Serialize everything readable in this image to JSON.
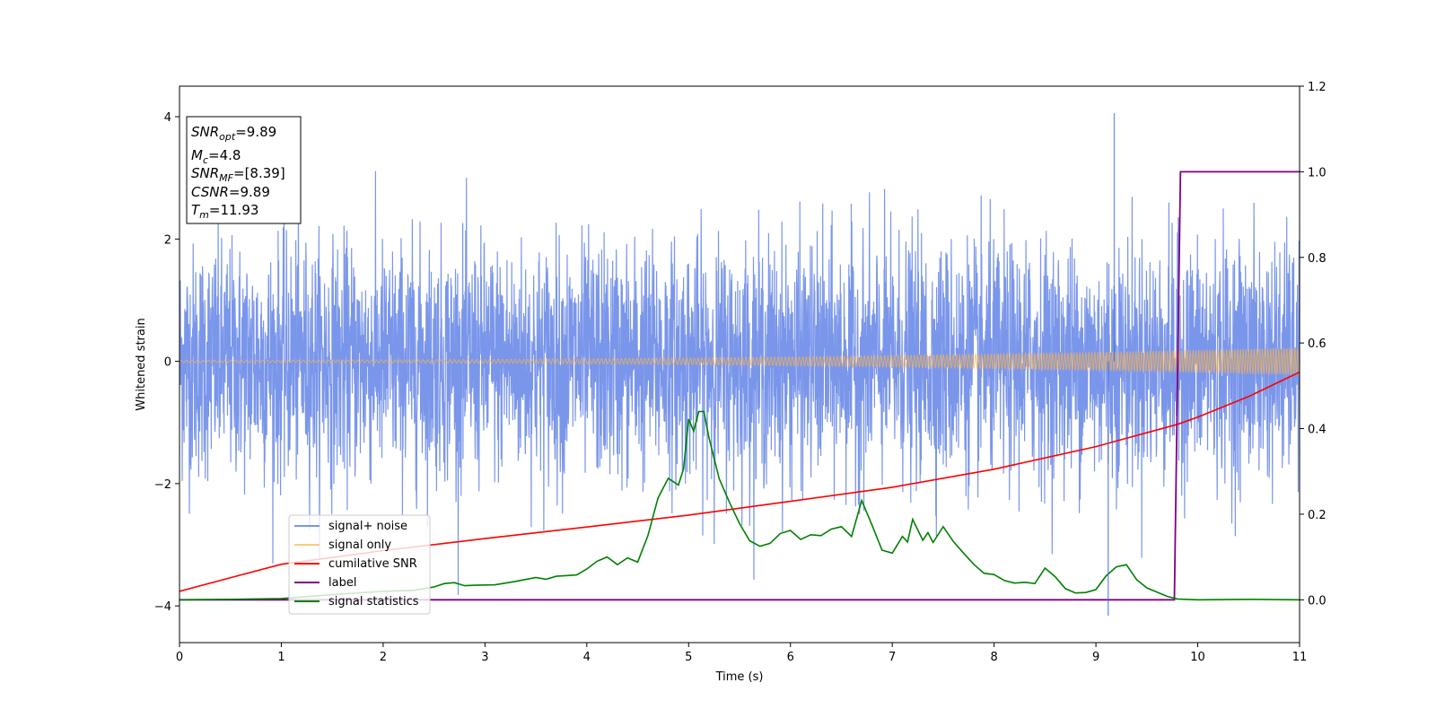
{
  "chart_data": {
    "type": "line",
    "xlabel": "Time (s)",
    "ylabel": "Whitened strain",
    "xlim": [
      0,
      11
    ],
    "ylim": [
      -4.6,
      4.5
    ],
    "y2lim": [
      -0.1,
      1.2
    ],
    "x_ticks": [
      "0",
      "1",
      "2",
      "3",
      "4",
      "5",
      "6",
      "7",
      "8",
      "9",
      "10",
      "11"
    ],
    "y_ticks": [
      "−4",
      "−2",
      "0",
      "2",
      "4"
    ],
    "y2_ticks": [
      "0.0",
      "0.2",
      "0.4",
      "0.6",
      "0.8",
      "1.0",
      "1.2"
    ],
    "grid": false,
    "legend_position": "lower-left",
    "legend": [
      "signal+ noise",
      "signal only",
      "cumilative SNR",
      "label",
      "signal statistics"
    ],
    "annotation": {
      "snr_opt": "=9.89",
      "mc": "=4.8",
      "snr_mf": "=[8.39]",
      "csnr": "=9.89",
      "tm": "=11.93"
    },
    "series": [
      {
        "name": "signal+ noise",
        "axis": "left",
        "color": "#4169e1",
        "description": "whitened noise, roughly ±2 with peaks near ±4",
        "peak_max": 4.06,
        "peak_min": -4.16
      },
      {
        "name": "signal only",
        "axis": "left",
        "color": "#ffb347",
        "amplitude_start": 0.02,
        "amplitude_end": 0.22
      },
      {
        "name": "cumilative SNR",
        "axis": "right",
        "color": "#ff0000",
        "x": [
          0,
          1,
          2,
          3,
          4,
          5,
          6,
          7,
          8,
          9,
          9.8,
          10,
          10.5,
          11
        ],
        "values": [
          0.02,
          0.083,
          0.115,
          0.143,
          0.17,
          0.198,
          0.23,
          0.263,
          0.305,
          0.358,
          0.41,
          0.427,
          0.475,
          0.532
        ]
      },
      {
        "name": "label",
        "axis": "right",
        "color": "#800080",
        "x": [
          0,
          9.77,
          9.83,
          11
        ],
        "values": [
          0,
          0,
          1,
          1
        ]
      },
      {
        "name": "signal statistics",
        "axis": "right",
        "color": "#008000",
        "x": [
          0,
          0.5,
          1,
          1.5,
          2,
          2.3,
          2.5,
          2.6,
          2.7,
          2.8,
          2.9,
          3.1,
          3.3,
          3.5,
          3.6,
          3.7,
          3.9,
          4.0,
          4.1,
          4.2,
          4.3,
          4.4,
          4.5,
          4.6,
          4.7,
          4.8,
          4.9,
          4.95,
          5.0,
          5.05,
          5.1,
          5.15,
          5.2,
          5.3,
          5.4,
          5.5,
          5.6,
          5.7,
          5.8,
          5.9,
          6.0,
          6.1,
          6.2,
          6.3,
          6.4,
          6.5,
          6.6,
          6.7,
          6.8,
          6.9,
          7.0,
          7.1,
          7.15,
          7.2,
          7.3,
          7.35,
          7.4,
          7.5,
          7.6,
          7.7,
          7.8,
          7.9,
          8.0,
          8.1,
          8.2,
          8.3,
          8.4,
          8.5,
          8.6,
          8.7,
          8.8,
          8.9,
          9.0,
          9.1,
          9.2,
          9.3,
          9.4,
          9.5,
          9.6,
          9.7,
          9.8,
          10.0,
          10.5,
          11
        ],
        "values": [
          0.0,
          0.001,
          0.003,
          0.012,
          0.02,
          0.022,
          0.03,
          0.038,
          0.04,
          0.033,
          0.034,
          0.035,
          0.043,
          0.052,
          0.048,
          0.055,
          0.058,
          0.072,
          0.09,
          0.1,
          0.082,
          0.098,
          0.088,
          0.15,
          0.238,
          0.284,
          0.268,
          0.306,
          0.422,
          0.394,
          0.44,
          0.44,
          0.378,
          0.283,
          0.228,
          0.178,
          0.138,
          0.125,
          0.132,
          0.155,
          0.162,
          0.141,
          0.152,
          0.15,
          0.165,
          0.171,
          0.148,
          0.232,
          0.175,
          0.116,
          0.109,
          0.148,
          0.135,
          0.188,
          0.139,
          0.157,
          0.134,
          0.171,
          0.136,
          0.109,
          0.083,
          0.062,
          0.059,
          0.045,
          0.039,
          0.041,
          0.038,
          0.074,
          0.054,
          0.026,
          0.016,
          0.017,
          0.024,
          0.056,
          0.077,
          0.082,
          0.047,
          0.028,
          0.018,
          0.008,
          0.002,
          0.0,
          0.001,
          0.0
        ]
      }
    ]
  }
}
